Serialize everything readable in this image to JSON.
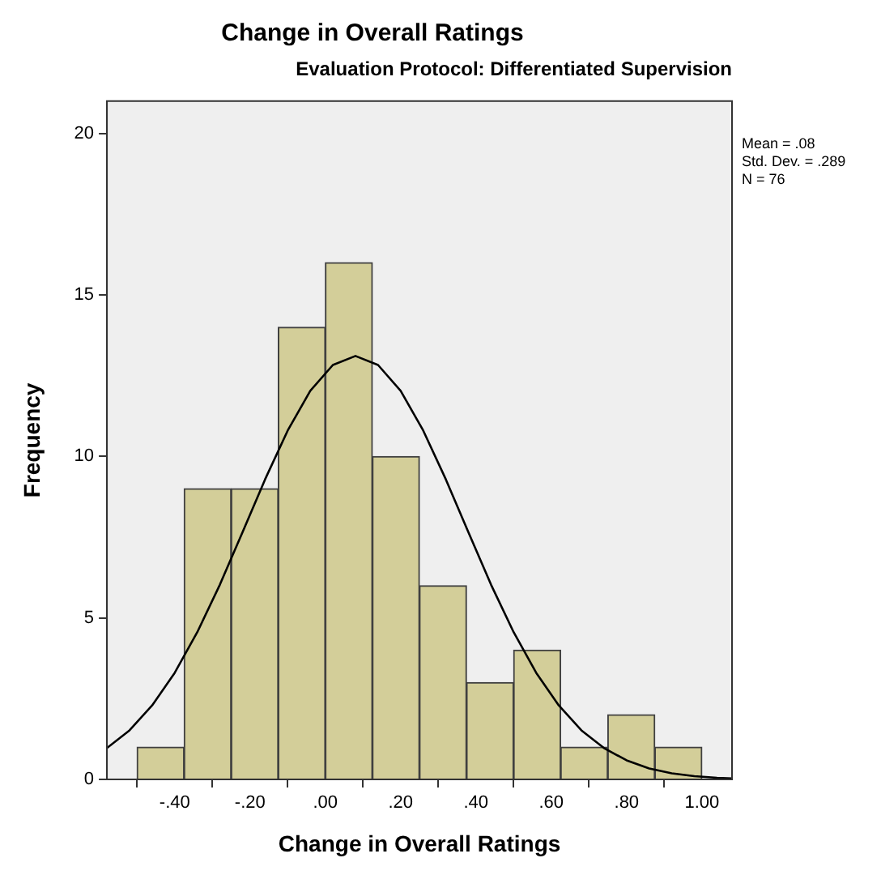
{
  "chart_data": {
    "type": "histogram",
    "title": "Change in Overall Ratings",
    "subtitle": "Evaluation Protocol: Differentiated Supervision",
    "xlabel": "Change in Overall Ratings",
    "ylabel": "Frequency",
    "bins": [
      -0.5,
      -0.375,
      -0.25,
      -0.125,
      0,
      0.125,
      0.25,
      0.375,
      0.5,
      0.625,
      0.75,
      0.875,
      1.0
    ],
    "values": [
      1,
      9,
      9,
      14,
      16,
      10,
      6,
      3,
      4,
      1,
      2,
      1
    ],
    "color": "#d3ce99",
    "series": [
      {
        "type": "line",
        "color": "#000000",
        "marker": "none",
        "x": [
          -0.58,
          -0.52,
          -0.46,
          -0.4,
          -0.34,
          -0.28,
          -0.22,
          -0.16,
          -0.1,
          -0.04,
          0.02,
          0.08,
          0.14,
          0.2,
          0.26,
          0.32,
          0.38,
          0.44,
          0.5,
          0.56,
          0.62,
          0.68,
          0.74,
          0.8,
          0.86,
          0.92,
          0.98,
          1.04,
          1.08
        ],
        "values": [
          0.97,
          1.52,
          2.29,
          3.3,
          4.56,
          6.03,
          7.65,
          9.29,
          10.8,
          12.03,
          12.83,
          13.11,
          12.83,
          12.03,
          10.8,
          9.29,
          7.65,
          6.03,
          4.56,
          3.3,
          2.29,
          1.52,
          0.97,
          0.59,
          0.34,
          0.19,
          0.1,
          0.05,
          0.03
        ]
      }
    ],
    "xlim": [
      -0.58,
      1.08
    ],
    "xticks": [
      {
        "value": -0.4,
        "label": "-.40"
      },
      {
        "value": -0.2,
        "label": "-.20"
      },
      {
        "value": 0,
        "label": ".00"
      },
      {
        "value": 0.2,
        "label": ".20"
      },
      {
        "value": 0.4,
        "label": ".40"
      },
      {
        "value": 0.6,
        "label": ".60"
      },
      {
        "value": 0.8,
        "label": ".80"
      },
      {
        "value": 1.0,
        "label": "1.00"
      }
    ],
    "ylim": [
      0,
      21
    ],
    "yticks": [
      0,
      5,
      10,
      15,
      20
    ],
    "annotations": [
      "Mean = .08",
      "Std. Dev. = .289",
      "N = 76"
    ]
  }
}
